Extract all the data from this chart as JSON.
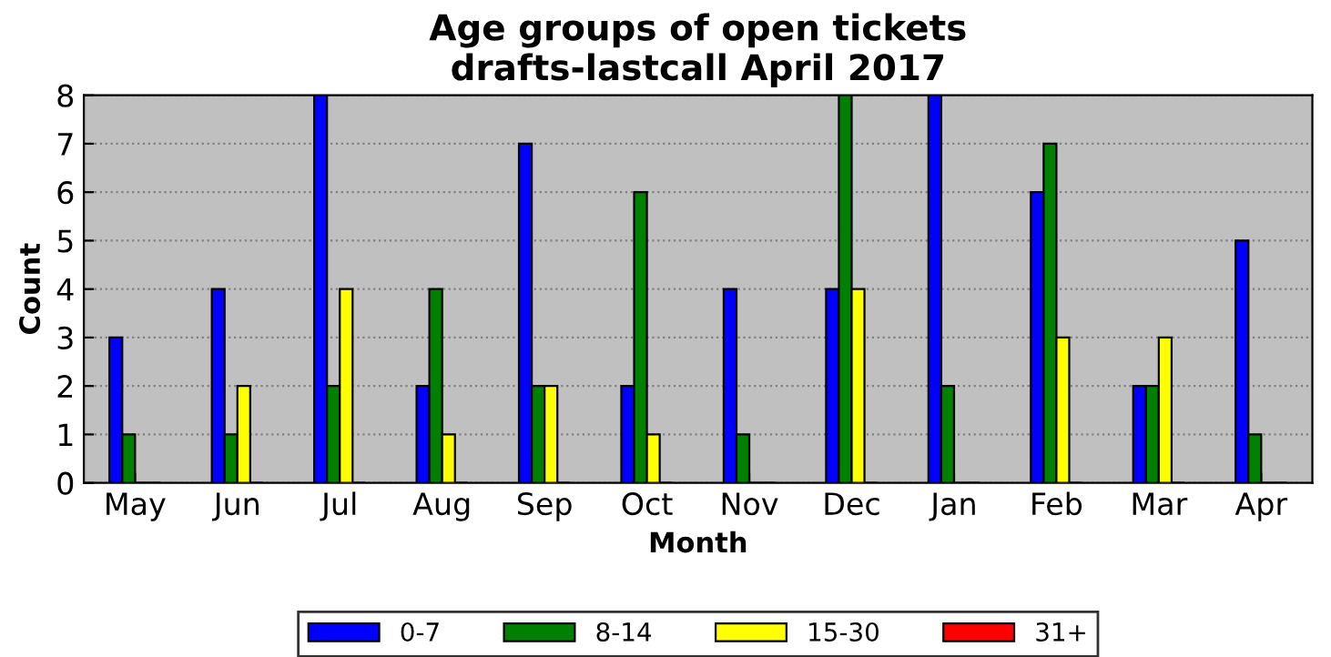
{
  "chart_data": {
    "type": "bar",
    "title": "Age groups of open tickets\ndrafts-lastcall April 2017",
    "xlabel": "Month",
    "ylabel": "Count",
    "categories": [
      "May",
      "Jun",
      "Jul",
      "Aug",
      "Sep",
      "Oct",
      "Nov",
      "Dec",
      "Jan",
      "Feb",
      "Mar",
      "Apr"
    ],
    "series": [
      {
        "name": "0-7",
        "color": "#0000ff",
        "values": [
          3,
          4,
          8,
          2,
          7,
          2,
          4,
          4,
          8,
          6,
          2,
          5
        ]
      },
      {
        "name": "8-14",
        "color": "#008000",
        "values": [
          1,
          1,
          2,
          4,
          2,
          6,
          1,
          8,
          2,
          7,
          2,
          1
        ]
      },
      {
        "name": "15-30",
        "color": "#ffff00",
        "values": [
          0,
          2,
          4,
          1,
          2,
          1,
          0,
          4,
          0,
          3,
          3,
          0
        ]
      },
      {
        "name": "31+",
        "color": "#ff0000",
        "values": [
          0,
          0,
          0,
          0,
          0,
          0,
          0,
          0,
          0,
          0,
          0,
          0
        ]
      }
    ],
    "ylim": [
      0,
      8
    ],
    "yticks": [
      0,
      1,
      2,
      3,
      4,
      5,
      6,
      7,
      8
    ],
    "grid": "y",
    "legend": "bottom"
  }
}
